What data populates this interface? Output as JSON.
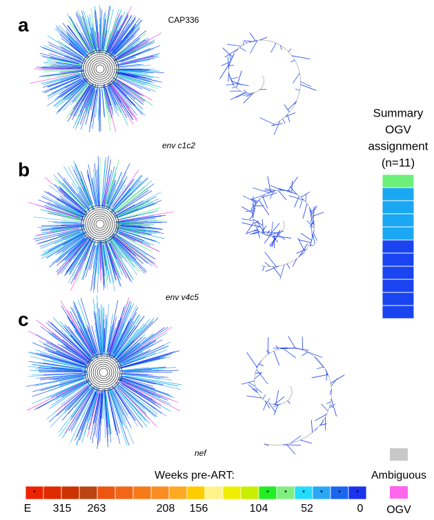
{
  "sample": "CAP336",
  "panels": [
    {
      "label": "a",
      "gene": "env c1c2"
    },
    {
      "label": "b",
      "gene": "env v4c5"
    },
    {
      "label": "c",
      "gene": "nef"
    }
  ],
  "summary": {
    "title_lines": [
      "Summary",
      "OGV",
      "assignment",
      "(n=11)"
    ],
    "colors": [
      "#6cf07a",
      "#1aa8f2",
      "#1aa8f2",
      "#1aa8f2",
      "#1aa8f2",
      "#1a44f0",
      "#1a44f0",
      "#1a44f0",
      "#1a44f0",
      "#1a44f0",
      "#1a44f0"
    ]
  },
  "legend": {
    "title": "Weeks pre-ART:",
    "cells": [
      {
        "color": "#ee2200",
        "mark": "*"
      },
      {
        "color": "#e02a00"
      },
      {
        "color": "#cc3300"
      },
      {
        "color": "#bb4411"
      },
      {
        "color": "#ee5511"
      },
      {
        "color": "#f26618"
      },
      {
        "color": "#f77a18"
      },
      {
        "color": "#fb8c22"
      },
      {
        "color": "#ffaa22"
      },
      {
        "color": "#ffcc00"
      },
      {
        "color": "#fff38a"
      },
      {
        "color": "#f0ee00"
      },
      {
        "color": "#c8ee00"
      },
      {
        "color": "#22ee22",
        "mark": "*"
      },
      {
        "color": "#80f080",
        "mark": "*"
      },
      {
        "color": "#22ddff",
        "mark": "*"
      },
      {
        "color": "#2aa8f5",
        "mark": "*"
      },
      {
        "color": "#1a66f0",
        "mark": "*"
      },
      {
        "color": "#1a33ee",
        "mark": "*"
      }
    ],
    "ticks": [
      "E",
      "315",
      "263",
      "208",
      "156",
      "104",
      "52",
      "0"
    ],
    "ambiguous": "Ambiguous",
    "ogv": "OGV"
  }
}
